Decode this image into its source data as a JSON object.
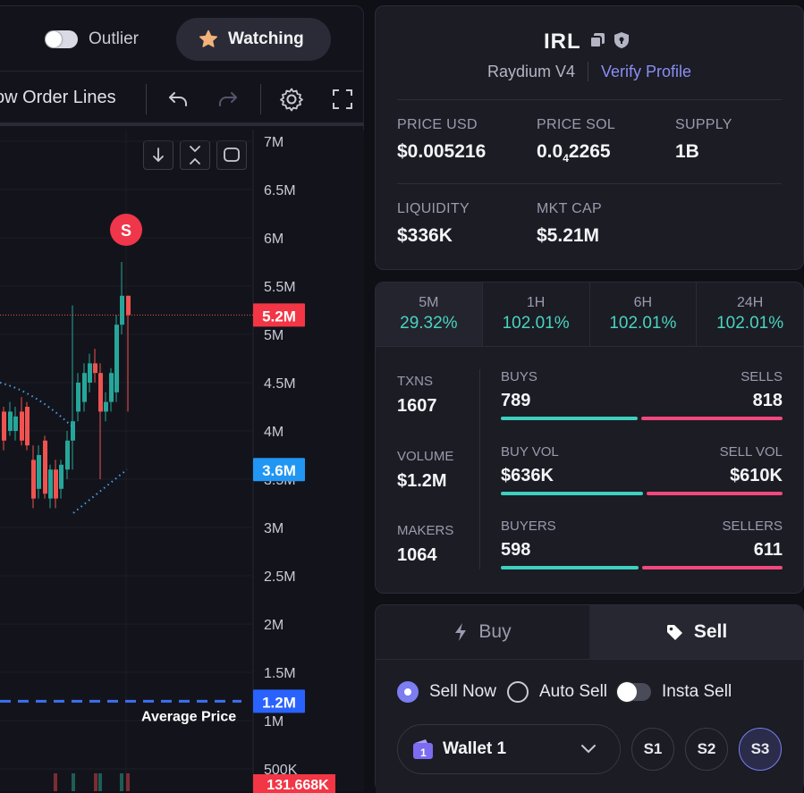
{
  "topbar": {
    "outlier_label": "Outlier",
    "watching_label": "Watching"
  },
  "chart_toolbar": {
    "order_lines_label": "ow Order Lines"
  },
  "chart": {
    "y_ticks": [
      "7M",
      "6.5M",
      "6M",
      "5.5M",
      "5M",
      "4.5M",
      "4M",
      "3.5M",
      "3M",
      "2.5M",
      "2M",
      "1.5M",
      "1M",
      "500K"
    ],
    "current_price_tag": "5.2M",
    "marker_tag": "3.6M",
    "avg_price_tag": "1.2M",
    "avg_price_label": "Average Price",
    "volume_tag": "131.668K",
    "sell_marker": "S"
  },
  "token": {
    "name": "IRL",
    "dex": "Raydium V4",
    "verify_label": "Verify Profile",
    "price_usd_label": "PRICE USD",
    "price_usd": "$0.005216",
    "price_sol_label": "PRICE SOL",
    "price_sol_main": "0.0",
    "price_sol_sub": "4",
    "price_sol_tail": "2265",
    "supply_label": "SUPPLY",
    "supply": "1B",
    "liquidity_label": "LIQUIDITY",
    "liquidity": "$336K",
    "mktcap_label": "MKT CAP",
    "mktcap": "$5.21M"
  },
  "timeframes": [
    {
      "label": "5M",
      "pct": "29.32%"
    },
    {
      "label": "1H",
      "pct": "102.01%"
    },
    {
      "label": "6H",
      "pct": "102.01%"
    },
    {
      "label": "24H",
      "pct": "102.01%"
    }
  ],
  "metrics": {
    "txns_label": "TXNS",
    "txns": "1607",
    "volume_label": "VOLUME",
    "volume": "$1.2M",
    "makers_label": "MAKERS",
    "makers": "1064",
    "buys_label": "BUYS",
    "buys": "789",
    "buys_fraction": 0.491,
    "sells_label": "SELLS",
    "sells": "818",
    "buyvol_label": "BUY VOL",
    "buyvol": "$636K",
    "buyvol_fraction": 0.51,
    "sellvol_label": "SELL VOL",
    "sellvol": "$610K",
    "buyers_label": "BUYERS",
    "buyers": "598",
    "buyers_fraction": 0.495,
    "sellers_label": "SELLERS",
    "sellers": "611"
  },
  "trade": {
    "buy_tab": "Buy",
    "sell_tab": "Sell",
    "sell_now": "Sell Now",
    "auto_sell": "Auto Sell",
    "insta_sell": "Insta Sell",
    "wallet_label": "Wallet 1",
    "wallet_badge": "1",
    "presets": [
      "S1",
      "S2",
      "S3"
    ]
  },
  "colors": {
    "up": "#26a69a",
    "down": "#ef5350",
    "accent": "#7b7df1",
    "pos_pct": "#4ad3c0",
    "buy_bar": "#3ecfbe",
    "sell_bar": "#f2487d"
  }
}
